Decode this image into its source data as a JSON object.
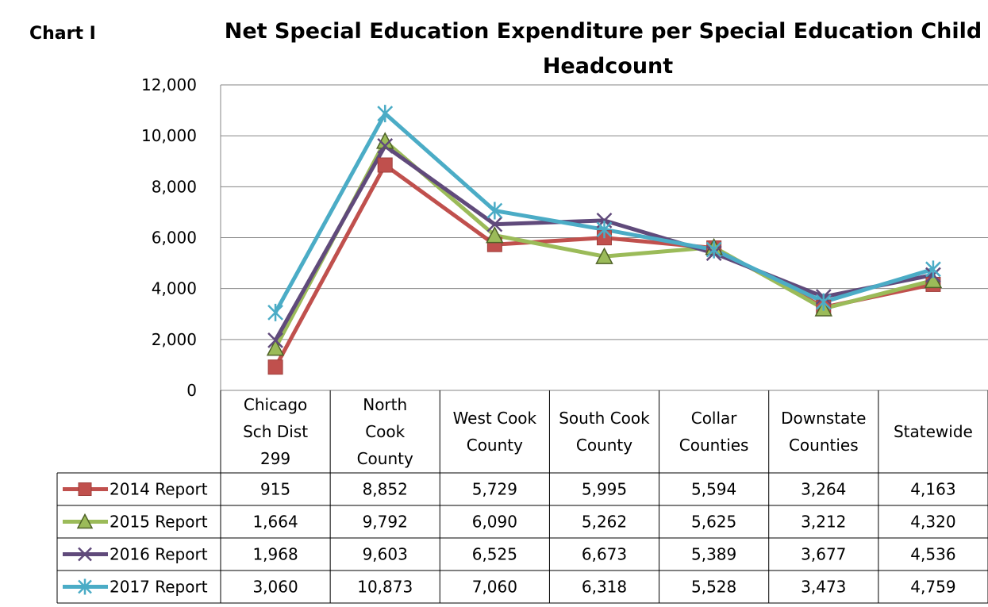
{
  "label": "Chart I",
  "chart_data": {
    "type": "line",
    "title_lines": [
      "Net Special Education Expenditure per Special Education Child",
      "Headcount"
    ],
    "ylim": [
      0,
      12000
    ],
    "yticks": [
      "0",
      "2,000",
      "4,000",
      "6,000",
      "8,000",
      "10,000",
      "12,000"
    ],
    "ytick_values": [
      0,
      2000,
      4000,
      6000,
      8000,
      10000,
      12000
    ],
    "categories": [
      [
        "Chicago",
        "Sch Dist",
        "299"
      ],
      [
        "North",
        "Cook",
        "County"
      ],
      [
        "West Cook",
        "County"
      ],
      [
        "South Cook",
        "County"
      ],
      [
        "Collar",
        "Counties"
      ],
      [
        "Downstate",
        "Counties"
      ],
      [
        "Statewide"
      ]
    ],
    "grid": true,
    "legend": "data-table",
    "series": [
      {
        "name": "2014 Report",
        "color": "#c0504d",
        "marker": "square",
        "values": [
          915,
          8852,
          5729,
          5995,
          5594,
          3264,
          4163
        ],
        "labels": [
          "915",
          "8,852",
          "5,729",
          "5,995",
          "5,594",
          "3,264",
          "4,163"
        ]
      },
      {
        "name": "2015 Report",
        "color": "#9bbb59",
        "marker": "triangle",
        "values": [
          1664,
          9792,
          6090,
          5262,
          5625,
          3212,
          4320
        ],
        "labels": [
          "1,664",
          "9,792",
          "6,090",
          "5,262",
          "5,625",
          "3,212",
          "4,320"
        ]
      },
      {
        "name": "2016 Report",
        "color": "#604a7b",
        "marker": "x",
        "values": [
          1968,
          9603,
          6525,
          6673,
          5389,
          3677,
          4536
        ],
        "labels": [
          "1,968",
          "9,603",
          "6,525",
          "6,673",
          "5,389",
          "3,677",
          "4,536"
        ]
      },
      {
        "name": "2017 Report",
        "color": "#4bacc6",
        "marker": "star",
        "values": [
          3060,
          10873,
          7060,
          6318,
          5528,
          3473,
          4759
        ],
        "labels": [
          "3,060",
          "10,873",
          "7,060",
          "6,318",
          "5,528",
          "3,473",
          "4,759"
        ]
      }
    ]
  }
}
